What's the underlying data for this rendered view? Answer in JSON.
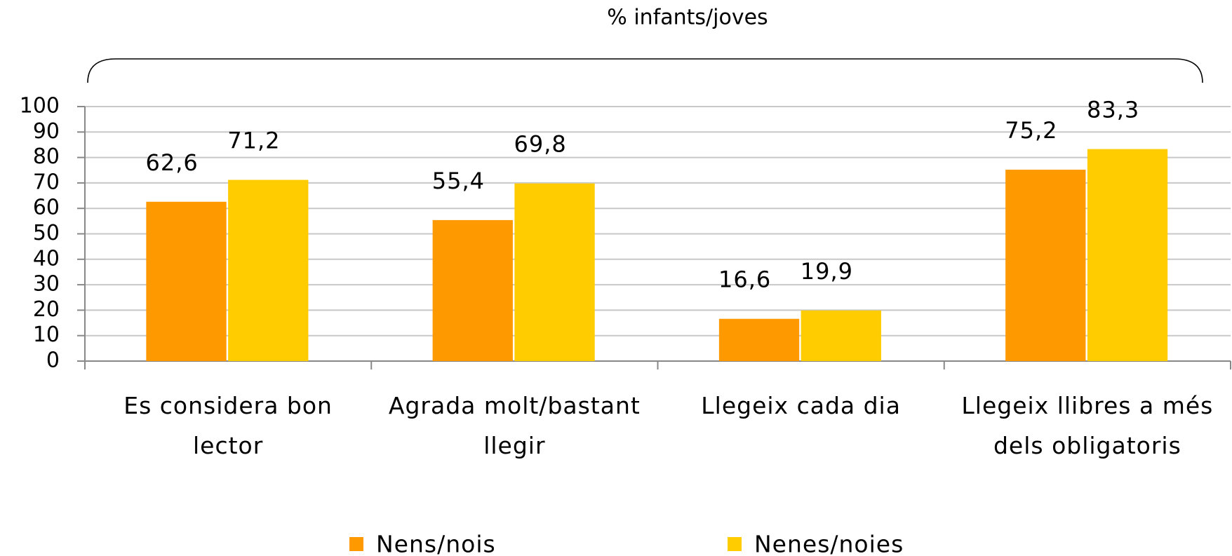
{
  "chart_data": {
    "type": "bar",
    "annotation": "% infants/joves",
    "categories": [
      "Es considera bon lector",
      "Agrada molt/bastant llegir",
      "Llegeix cada dia",
      "Llegeix llibres a més dels obligatoris"
    ],
    "series": [
      {
        "name": "Nens/nois",
        "color": "#ff9900",
        "values": [
          62.6,
          55.4,
          16.6,
          75.2
        ],
        "value_labels": [
          "62,6",
          "55,4",
          "16,6",
          "75,2"
        ]
      },
      {
        "name": "Nenes/noies",
        "color": "#ffcc00",
        "values": [
          71.2,
          69.8,
          19.9,
          83.3
        ],
        "value_labels": [
          "71,2",
          "69,8",
          "19,9",
          "83,3"
        ]
      }
    ],
    "ylim": [
      0,
      100
    ],
    "yticks": [
      0,
      10,
      20,
      30,
      40,
      50,
      60,
      70,
      80,
      90,
      100
    ],
    "grid": true,
    "legend": "bottom"
  }
}
